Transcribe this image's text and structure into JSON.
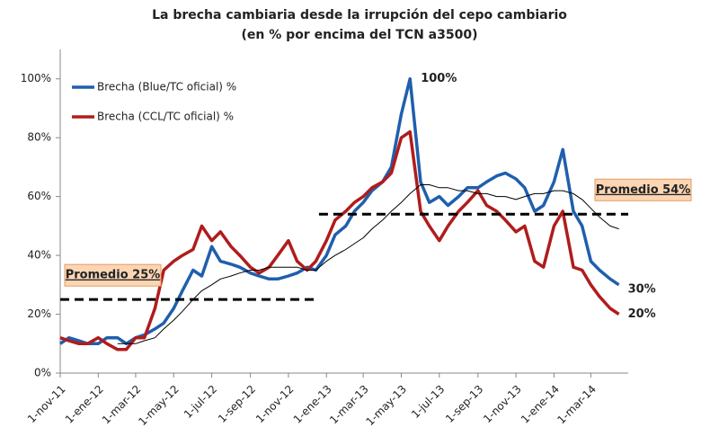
{
  "chart_data": {
    "type": "line",
    "title": "La brecha cambiaria desde la irrupción del cepo cambiario",
    "subtitle": "(en % por encima del TCN a3500)",
    "x": [
      "2011-11-01",
      "2011-11-15",
      "2011-12-01",
      "2011-12-15",
      "2012-01-01",
      "2012-01-15",
      "2012-02-01",
      "2012-02-15",
      "2012-03-01",
      "2012-03-15",
      "2012-04-01",
      "2012-04-15",
      "2012-05-01",
      "2012-05-15",
      "2012-06-01",
      "2012-06-15",
      "2012-07-01",
      "2012-07-15",
      "2012-08-01",
      "2012-08-15",
      "2012-09-01",
      "2012-09-15",
      "2012-10-01",
      "2012-10-15",
      "2012-11-01",
      "2012-11-15",
      "2012-12-01",
      "2012-12-15",
      "2013-01-01",
      "2013-01-15",
      "2013-02-01",
      "2013-02-15",
      "2013-03-01",
      "2013-03-15",
      "2013-04-01",
      "2013-04-15",
      "2013-05-01",
      "2013-05-15",
      "2013-06-01",
      "2013-06-15",
      "2013-07-01",
      "2013-07-15",
      "2013-08-01",
      "2013-08-15",
      "2013-09-01",
      "2013-09-15",
      "2013-10-01",
      "2013-10-15",
      "2013-11-01",
      "2013-11-15",
      "2013-12-01",
      "2013-12-15",
      "2014-01-01",
      "2014-01-15",
      "2014-02-01",
      "2014-02-15",
      "2014-03-01",
      "2014-03-15",
      "2014-04-01",
      "2014-04-15"
    ],
    "series": [
      {
        "name": "Brecha (Blue/TC oficial) %",
        "color": "#1f5fad",
        "width": 3.5,
        "values": [
          10,
          12,
          11,
          10,
          10,
          12,
          12,
          10,
          12,
          13,
          15,
          17,
          22,
          28,
          35,
          33,
          43,
          38,
          37,
          36,
          34,
          33,
          32,
          32,
          33,
          34,
          36,
          35,
          40,
          47,
          50,
          55,
          58,
          62,
          65,
          70,
          88,
          100,
          65,
          58,
          60,
          57,
          60,
          63,
          63,
          65,
          67,
          68,
          66,
          63,
          55,
          57,
          65,
          76,
          55,
          50,
          38,
          35,
          32,
          30
        ],
        "value_labels": [
          null,
          null,
          null,
          null,
          null,
          null,
          null,
          null,
          null,
          null,
          null,
          null,
          null,
          null,
          null,
          null,
          null,
          null,
          null,
          null,
          null,
          null,
          null,
          null,
          null,
          null,
          null,
          null,
          null,
          null,
          null,
          null,
          null,
          null,
          null,
          null,
          null,
          "100%",
          null,
          null,
          null,
          null,
          null,
          null,
          null,
          null,
          null,
          null,
          null,
          null,
          null,
          null,
          null,
          null,
          null,
          null,
          null,
          null,
          null,
          "30%"
        ]
      },
      {
        "name": "Brecha (CCL/TC oficial) %",
        "color": "#b01c1c",
        "width": 3.5,
        "values": [
          12,
          11,
          10,
          10,
          12,
          10,
          8,
          8,
          12,
          12,
          22,
          35,
          38,
          40,
          42,
          50,
          45,
          48,
          43,
          40,
          36,
          34,
          36,
          40,
          45,
          38,
          35,
          38,
          45,
          52,
          55,
          58,
          60,
          63,
          65,
          68,
          80,
          82,
          55,
          50,
          45,
          50,
          55,
          58,
          62,
          57,
          55,
          52,
          48,
          50,
          38,
          36,
          50,
          55,
          36,
          35,
          30,
          26,
          22,
          20
        ],
        "value_labels": [
          null,
          null,
          null,
          null,
          null,
          null,
          null,
          null,
          null,
          null,
          null,
          null,
          null,
          null,
          null,
          null,
          null,
          null,
          null,
          null,
          null,
          null,
          null,
          null,
          null,
          null,
          null,
          null,
          null,
          null,
          null,
          null,
          null,
          null,
          null,
          null,
          null,
          null,
          null,
          null,
          null,
          null,
          null,
          null,
          null,
          null,
          null,
          null,
          null,
          null,
          null,
          null,
          null,
          null,
          null,
          null,
          null,
          null,
          null,
          "20%"
        ]
      },
      {
        "color": "#000000",
        "width": 1,
        "values": [
          null,
          null,
          null,
          null,
          null,
          null,
          10,
          10,
          10,
          11,
          12,
          15,
          18,
          21,
          25,
          28,
          30,
          32,
          33,
          34,
          35,
          35,
          36,
          36,
          36,
          36,
          35,
          35,
          38,
          40,
          42,
          44,
          46,
          49,
          52,
          55,
          58,
          61,
          64,
          64,
          63,
          63,
          62,
          62,
          61,
          61,
          60,
          60,
          59,
          60,
          61,
          61,
          62,
          62,
          61,
          59,
          56,
          53,
          50,
          49
        ]
      }
    ],
    "reference_lines": [
      {
        "label": "Promedio 25%",
        "value": 25,
        "x": [
          "2011-11-01",
          "2012-12-20"
        ]
      },
      {
        "label": "Promedio 54%",
        "value": 54,
        "x": [
          "2012-12-20",
          "2014-04-30"
        ]
      }
    ],
    "xlim": [
      "2011-11-01",
      "2014-04-30"
    ],
    "xticks": [
      {
        "value": "2011-11-01",
        "label": "1-nov-11"
      },
      {
        "value": "2012-01-01",
        "label": "1-ene-12"
      },
      {
        "value": "2012-03-01",
        "label": "1-mar-12"
      },
      {
        "value": "2012-05-01",
        "label": "1-may-12"
      },
      {
        "value": "2012-07-01",
        "label": "1-jul-12"
      },
      {
        "value": "2012-09-01",
        "label": "1-sep-12"
      },
      {
        "value": "2012-11-01",
        "label": "1-nov-12"
      },
      {
        "value": "2013-01-01",
        "label": "1-ene-13"
      },
      {
        "value": "2013-03-01",
        "label": "1-mar-13"
      },
      {
        "value": "2013-05-01",
        "label": "1-may-13"
      },
      {
        "value": "2013-07-01",
        "label": "1-jul-13"
      },
      {
        "value": "2013-09-01",
        "label": "1-sep-13"
      },
      {
        "value": "2013-11-01",
        "label": "1-nov-13"
      },
      {
        "value": "2014-01-01",
        "label": "1-ene-14"
      },
      {
        "value": "2014-03-01",
        "label": "1-mar-14"
      }
    ],
    "ylim": [
      0,
      110
    ],
    "yticks": [
      {
        "value": 0,
        "label": "0%"
      },
      {
        "value": 20,
        "label": "20%"
      },
      {
        "value": 40,
        "label": "40%"
      },
      {
        "value": 60,
        "label": "60%"
      },
      {
        "value": 80,
        "label": "80%"
      },
      {
        "value": 100,
        "label": "100%"
      }
    ],
    "grid": false
  }
}
